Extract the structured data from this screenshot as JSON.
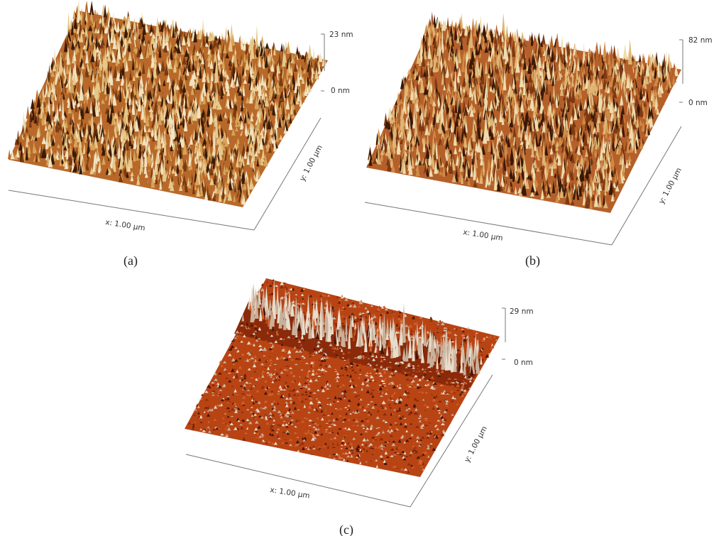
{
  "panels": [
    {
      "id": "a",
      "caption": "(a)",
      "z_max_label": "23 nm",
      "z_min_label": "0 nm",
      "x_label": "x: 1.00 µm",
      "y_label": "y: 1.00 µm",
      "palette": [
        "#3a1a06",
        "#7a3a10",
        "#b8692a",
        "#d7a35a",
        "#e6c88a",
        "#f2e3c0"
      ]
    },
    {
      "id": "b",
      "caption": "(b)",
      "z_max_label": "82 nm",
      "z_min_label": "0 nm",
      "x_label": "x: 1.00 µm",
      "y_label": "y: 1.00 µm",
      "palette": [
        "#3a1806",
        "#7e3812",
        "#b5602a",
        "#cf8a45",
        "#dfb574",
        "#eedcae"
      ]
    },
    {
      "id": "c",
      "caption": "(c)",
      "z_max_label": "29 nm",
      "z_min_label": "0 nm",
      "x_label": "x: 1.00 µm",
      "y_label": "y: 1.00 µm",
      "palette": [
        "#4a1405",
        "#8a2a0a",
        "#b84414",
        "#d0622a",
        "#c9b09a",
        "#e8dccb"
      ]
    }
  ]
}
